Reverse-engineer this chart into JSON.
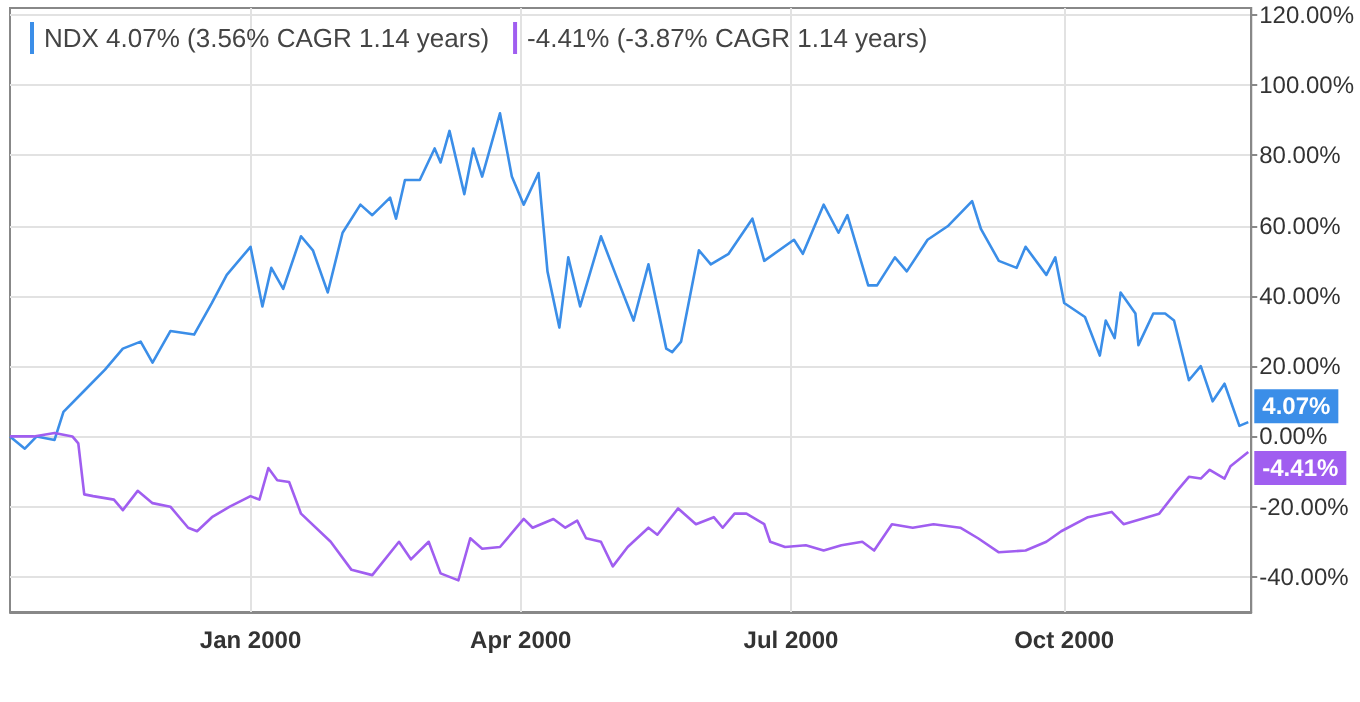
{
  "chart_data": {
    "type": "line",
    "legend": "top left",
    "grid": true,
    "marker": "none",
    "line_style": "solid",
    "xlim": [
      "1999-10-12",
      "2000-12-03"
    ],
    "xticks": [
      {
        "value": "2000-01-01",
        "label": "Jan 2000"
      },
      {
        "value": "2000-04-01",
        "label": "Apr 2000"
      },
      {
        "value": "2000-07-01",
        "label": "Jul 2000"
      },
      {
        "value": "2000-10-01",
        "label": "Oct 2000"
      }
    ],
    "ylim": [
      -50,
      122
    ],
    "yticks": [
      {
        "value": -40,
        "label": "-40.00%"
      },
      {
        "value": -20,
        "label": "-20.00%"
      },
      {
        "value": 0,
        "label": "0.00%"
      },
      {
        "value": 20,
        "label": "20.00%"
      },
      {
        "value": 40,
        "label": "40.00%"
      },
      {
        "value": 60,
        "label": "60.00%"
      },
      {
        "value": 80,
        "label": "80.00%"
      },
      {
        "value": 100,
        "label": "100.00%"
      },
      {
        "value": 120,
        "label": "120.00%"
      }
    ],
    "series": [
      {
        "name": "NDX 4.07% (3.56% CAGR 1.14 years)",
        "color": "#3b8ee8",
        "x": [
          "1999-10-12",
          "1999-10-17",
          "1999-10-21",
          "1999-10-27",
          "1999-10-30",
          "1999-11-06",
          "1999-11-13",
          "1999-11-19",
          "1999-11-25",
          "1999-11-29",
          "1999-12-05",
          "1999-12-13",
          "1999-12-19",
          "1999-12-24",
          "2000-01-01",
          "2000-01-05",
          "2000-01-08",
          "2000-01-12",
          "2000-01-18",
          "2000-01-22",
          "2000-01-27",
          "2000-02-01",
          "2000-02-07",
          "2000-02-11",
          "2000-02-17",
          "2000-02-19",
          "2000-02-22",
          "2000-02-27",
          "2000-03-03",
          "2000-03-05",
          "2000-03-08",
          "2000-03-13",
          "2000-03-16",
          "2000-03-19",
          "2000-03-25",
          "2000-03-29",
          "2000-04-02",
          "2000-04-07",
          "2000-04-10",
          "2000-04-14",
          "2000-04-17",
          "2000-04-21",
          "2000-04-28",
          "2000-05-03",
          "2000-05-09",
          "2000-05-14",
          "2000-05-20",
          "2000-05-22",
          "2000-05-25",
          "2000-05-28",
          "2000-05-31",
          "2000-06-04",
          "2000-06-10",
          "2000-06-18",
          "2000-06-22",
          "2000-07-02",
          "2000-07-05",
          "2000-07-12",
          "2000-07-17",
          "2000-07-20",
          "2000-07-27",
          "2000-07-30",
          "2000-08-05",
          "2000-08-09",
          "2000-08-16",
          "2000-08-23",
          "2000-08-31",
          "2000-09-03",
          "2000-09-09",
          "2000-09-15",
          "2000-09-18",
          "2000-09-25",
          "2000-09-28",
          "2000-10-01",
          "2000-10-08",
          "2000-10-13",
          "2000-10-15",
          "2000-10-18",
          "2000-10-20",
          "2000-10-25",
          "2000-10-26",
          "2000-10-31",
          "2000-11-04",
          "2000-11-07",
          "2000-11-12",
          "2000-11-16",
          "2000-11-20",
          "2000-11-24",
          "2000-11-29",
          "2000-12-02"
        ],
        "values": [
          0,
          -3.5,
          0,
          -1,
          7,
          13,
          19,
          25,
          27,
          21,
          30,
          29,
          38,
          46,
          54,
          37,
          48,
          42,
          57,
          53,
          41,
          58,
          66,
          63,
          68,
          62,
          73,
          73,
          82,
          78,
          87,
          69,
          82,
          74,
          92,
          74,
          66,
          75,
          47,
          31,
          51,
          37,
          57,
          46,
          33,
          49,
          25,
          24,
          27,
          40,
          53,
          49,
          52,
          62,
          50,
          56,
          52,
          66,
          58,
          63,
          43,
          43,
          51,
          47,
          56,
          60,
          67,
          59,
          50,
          48,
          54,
          46,
          51,
          38,
          34,
          23,
          33,
          28,
          41,
          35,
          26,
          35,
          35,
          33,
          16,
          20,
          10,
          15,
          3,
          4.07
        ],
        "value_labels": [
          null,
          null,
          null,
          null,
          null,
          null,
          null,
          null,
          null,
          null,
          null,
          null,
          null,
          null,
          null,
          null,
          null,
          null,
          null,
          null,
          null,
          null,
          null,
          null,
          null,
          null,
          null,
          null,
          null,
          null,
          null,
          null,
          null,
          null,
          null,
          null,
          null,
          null,
          null,
          null,
          null,
          null,
          null,
          null,
          null,
          null,
          null,
          null,
          null,
          null,
          null,
          null,
          null,
          null,
          null,
          null,
          null,
          null,
          null,
          null,
          null,
          null,
          null,
          null,
          null,
          null,
          null,
          null,
          null,
          null,
          null,
          null,
          null,
          null,
          null,
          null,
          null,
          null,
          null,
          null,
          null,
          null,
          null,
          null,
          null,
          null,
          null,
          null,
          null,
          "4.07%"
        ]
      },
      {
        "name": "-4.41% (-3.87% CAGR 1.14 years)",
        "color": "#a05ef0",
        "x": [
          "1999-10-12",
          "1999-10-20",
          "1999-10-27",
          "1999-11-02",
          "1999-11-04",
          "1999-11-06",
          "1999-11-09",
          "1999-11-16",
          "1999-11-19",
          "1999-11-24",
          "1999-11-29",
          "1999-12-05",
          "1999-12-11",
          "1999-12-14",
          "1999-12-19",
          "1999-12-25",
          "2000-01-01",
          "2000-01-04",
          "2000-01-07",
          "2000-01-10",
          "2000-01-14",
          "2000-01-18",
          "2000-01-28",
          "2000-02-04",
          "2000-02-11",
          "2000-02-20",
          "2000-02-24",
          "2000-03-01",
          "2000-03-05",
          "2000-03-11",
          "2000-03-15",
          "2000-03-19",
          "2000-03-25",
          "2000-04-02",
          "2000-04-05",
          "2000-04-12",
          "2000-04-16",
          "2000-04-20",
          "2000-04-23",
          "2000-04-28",
          "2000-05-02",
          "2000-05-07",
          "2000-05-14",
          "2000-05-17",
          "2000-05-24",
          "2000-05-30",
          "2000-06-05",
          "2000-06-08",
          "2000-06-12",
          "2000-06-16",
          "2000-06-22",
          "2000-06-24",
          "2000-06-29",
          "2000-07-06",
          "2000-07-12",
          "2000-07-18",
          "2000-07-25",
          "2000-07-29",
          "2000-08-04",
          "2000-08-11",
          "2000-08-18",
          "2000-08-27",
          "2000-09-02",
          "2000-09-09",
          "2000-09-18",
          "2000-09-25",
          "2000-09-30",
          "2000-10-09",
          "2000-10-17",
          "2000-10-21",
          "2000-10-29",
          "2000-11-02",
          "2000-11-08",
          "2000-11-12",
          "2000-11-16",
          "2000-11-19",
          "2000-11-24",
          "2000-11-26",
          "2000-12-02"
        ],
        "values": [
          0,
          0,
          1,
          0,
          -2,
          -16.5,
          -17,
          -18,
          -21,
          -15.5,
          -19,
          -20,
          -26,
          -27,
          -23,
          -20,
          -17,
          -18,
          -9,
          -12.5,
          -13,
          -22,
          -30,
          -38,
          -39.5,
          -30,
          -35,
          -30,
          -39,
          -41,
          -29,
          -32,
          -31.5,
          -23.5,
          -26,
          -23.5,
          -26,
          -24,
          -29,
          -30,
          -37,
          -31.5,
          -26,
          -28,
          -20.5,
          -25,
          -23,
          -26,
          -22,
          -22,
          -25,
          -30,
          -31.5,
          -31,
          -32.5,
          -31,
          -30,
          -32.5,
          -25,
          -26,
          -25,
          -26,
          -29,
          -33,
          -32.5,
          -30,
          -27,
          -23,
          -21.5,
          -25,
          -23,
          -22,
          -15.5,
          -11.5,
          -12,
          -9.5,
          -12,
          -8.5,
          -4.41
        ],
        "value_labels": [
          null,
          null,
          null,
          null,
          null,
          null,
          null,
          null,
          null,
          null,
          null,
          null,
          null,
          null,
          null,
          null,
          null,
          null,
          null,
          null,
          null,
          null,
          null,
          null,
          null,
          null,
          null,
          null,
          null,
          null,
          null,
          null,
          null,
          null,
          null,
          null,
          null,
          null,
          null,
          null,
          null,
          null,
          null,
          null,
          null,
          null,
          null,
          null,
          null,
          null,
          null,
          null,
          null,
          null,
          null,
          null,
          null,
          null,
          null,
          null,
          null,
          null,
          null,
          null,
          null,
          null,
          null,
          null,
          null,
          null,
          null,
          null,
          null,
          null,
          null,
          null,
          null,
          null,
          "-4.41%"
        ]
      }
    ]
  }
}
